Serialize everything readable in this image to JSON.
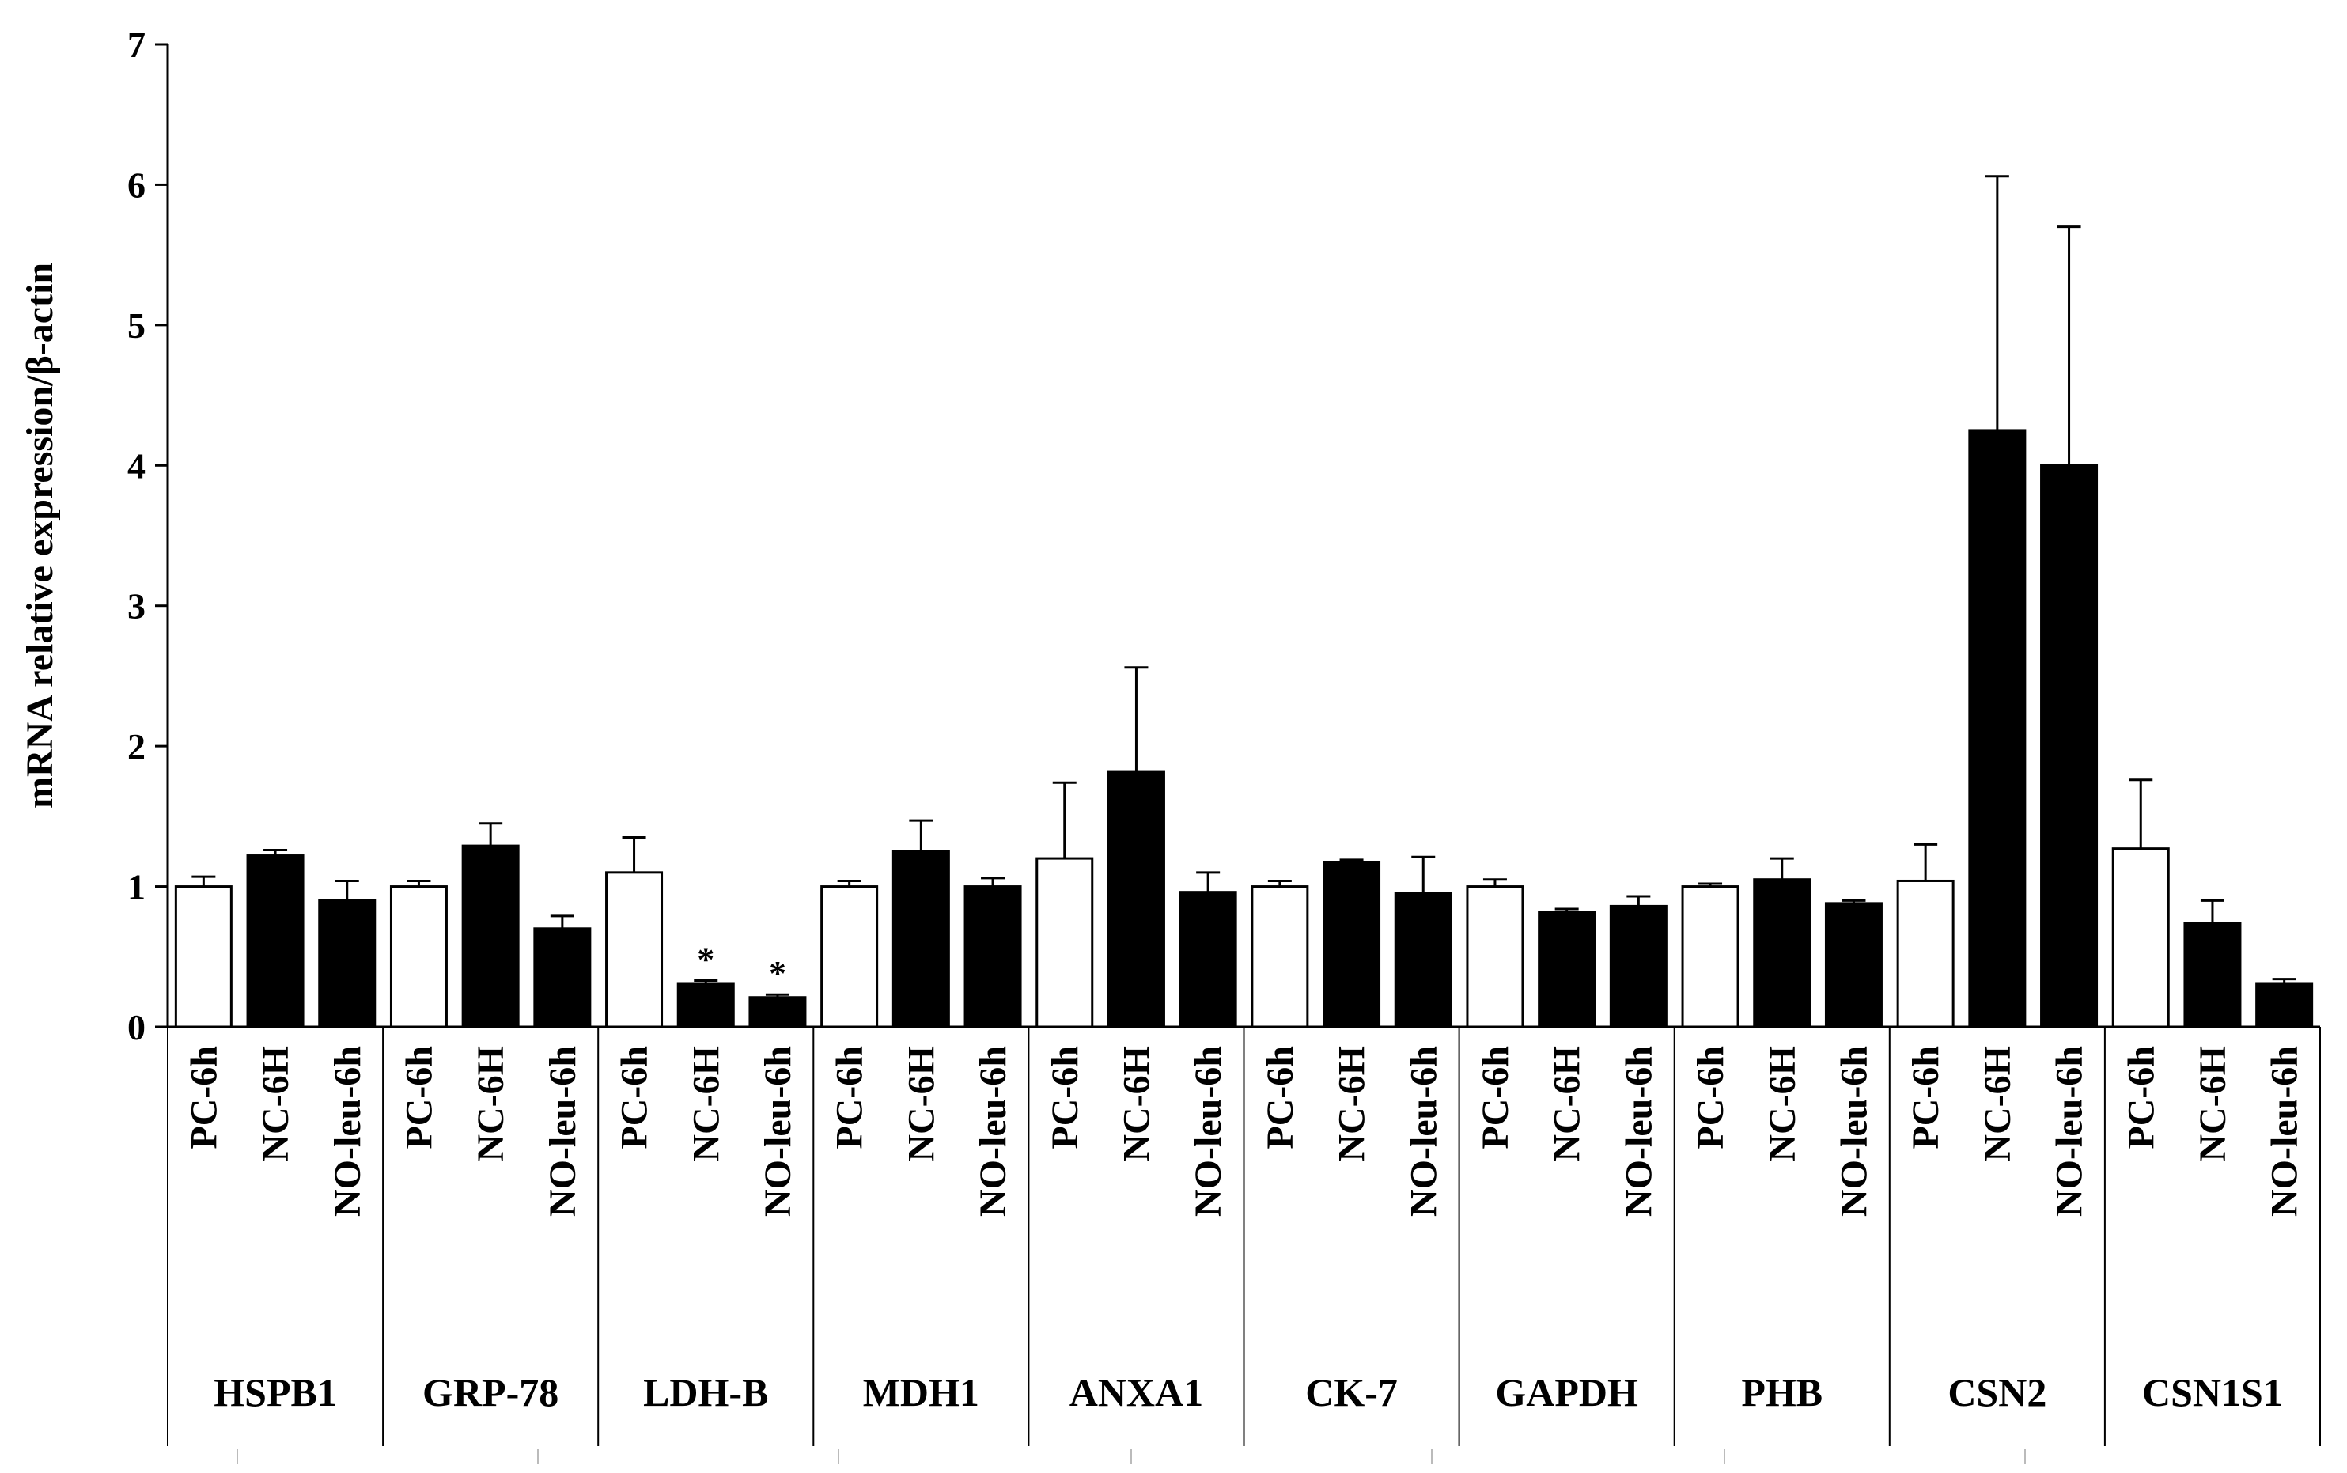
{
  "chart_data": {
    "type": "bar",
    "title": "",
    "xlabel": "",
    "ylabel": "mRNA relative expression/β-actin",
    "ylim": [
      0,
      7
    ],
    "yticks": [
      0,
      1,
      2,
      3,
      4,
      5,
      6,
      7
    ],
    "grid": false,
    "legend": "none",
    "fill_colors": {
      "control": "#ffffff",
      "treatment": "#000000"
    },
    "genes": [
      {
        "name": "HSPB1",
        "bars": [
          {
            "label": "PC-6h",
            "fill": "control",
            "value": 1.0,
            "error": 0.07,
            "star": false
          },
          {
            "label": "NC-6H",
            "fill": "treatment",
            "value": 1.22,
            "error": 0.04,
            "star": false
          },
          {
            "label": "NO-leu-6h",
            "fill": "treatment",
            "value": 0.9,
            "error": 0.14,
            "star": false
          }
        ]
      },
      {
        "name": "GRP-78",
        "bars": [
          {
            "label": "PC-6h",
            "fill": "control",
            "value": 1.0,
            "error": 0.04,
            "star": false
          },
          {
            "label": "NC-6H",
            "fill": "treatment",
            "value": 1.29,
            "error": 0.16,
            "star": false
          },
          {
            "label": "NO-leu-6h",
            "fill": "treatment",
            "value": 0.7,
            "error": 0.09,
            "star": false
          }
        ]
      },
      {
        "name": "LDH-B",
        "bars": [
          {
            "label": "PC-6h",
            "fill": "control",
            "value": 1.1,
            "error": 0.25,
            "star": false
          },
          {
            "label": "NC-6H",
            "fill": "treatment",
            "value": 0.31,
            "error": 0.02,
            "star": true
          },
          {
            "label": "NO-leu-6h",
            "fill": "treatment",
            "value": 0.21,
            "error": 0.02,
            "star": true
          }
        ]
      },
      {
        "name": "MDH1",
        "bars": [
          {
            "label": "PC-6h",
            "fill": "control",
            "value": 1.0,
            "error": 0.04,
            "star": false
          },
          {
            "label": "NC-6H",
            "fill": "treatment",
            "value": 1.25,
            "error": 0.22,
            "star": false
          },
          {
            "label": "NO-leu-6h",
            "fill": "treatment",
            "value": 1.0,
            "error": 0.06,
            "star": false
          }
        ]
      },
      {
        "name": "ANXA1",
        "bars": [
          {
            "label": "PC-6h",
            "fill": "control",
            "value": 1.2,
            "error": 0.54,
            "star": false
          },
          {
            "label": "NC-6H",
            "fill": "treatment",
            "value": 1.82,
            "error": 0.74,
            "star": false
          },
          {
            "label": "NO-leu-6h",
            "fill": "treatment",
            "value": 0.96,
            "error": 0.14,
            "star": false
          }
        ]
      },
      {
        "name": "CK-7",
        "bars": [
          {
            "label": "PC-6h",
            "fill": "control",
            "value": 1.0,
            "error": 0.04,
            "star": false
          },
          {
            "label": "NC-6H",
            "fill": "treatment",
            "value": 1.17,
            "error": 0.02,
            "star": false
          },
          {
            "label": "NO-leu-6h",
            "fill": "treatment",
            "value": 0.95,
            "error": 0.26,
            "star": false
          }
        ]
      },
      {
        "name": "GAPDH",
        "bars": [
          {
            "label": "PC-6h",
            "fill": "control",
            "value": 1.0,
            "error": 0.05,
            "star": false
          },
          {
            "label": "NC-6H",
            "fill": "treatment",
            "value": 0.82,
            "error": 0.02,
            "star": false
          },
          {
            "label": "NO-leu-6h",
            "fill": "treatment",
            "value": 0.86,
            "error": 0.07,
            "star": false
          }
        ]
      },
      {
        "name": "PHB",
        "bars": [
          {
            "label": "PC-6h",
            "fill": "control",
            "value": 1.0,
            "error": 0.02,
            "star": false
          },
          {
            "label": "NC-6H",
            "fill": "treatment",
            "value": 1.05,
            "error": 0.15,
            "star": false
          },
          {
            "label": "NO-leu-6h",
            "fill": "treatment",
            "value": 0.88,
            "error": 0.02,
            "star": false
          }
        ]
      },
      {
        "name": "CSN2",
        "bars": [
          {
            "label": "PC-6h",
            "fill": "control",
            "value": 1.04,
            "error": 0.26,
            "star": false
          },
          {
            "label": "NC-6H",
            "fill": "treatment",
            "value": 4.25,
            "error": 1.81,
            "star": false
          },
          {
            "label": "NO-leu-6h",
            "fill": "treatment",
            "value": 4.0,
            "error": 1.7,
            "star": false
          }
        ]
      },
      {
        "name": "CSN1S1",
        "bars": [
          {
            "label": "PC-6h",
            "fill": "control",
            "value": 1.27,
            "error": 0.49,
            "star": false
          },
          {
            "label": "NC-6H",
            "fill": "treatment",
            "value": 0.74,
            "error": 0.16,
            "star": false
          },
          {
            "label": "NO-leu-6h",
            "fill": "treatment",
            "value": 0.31,
            "error": 0.03,
            "star": false
          }
        ]
      }
    ],
    "significance_marker": "*"
  }
}
